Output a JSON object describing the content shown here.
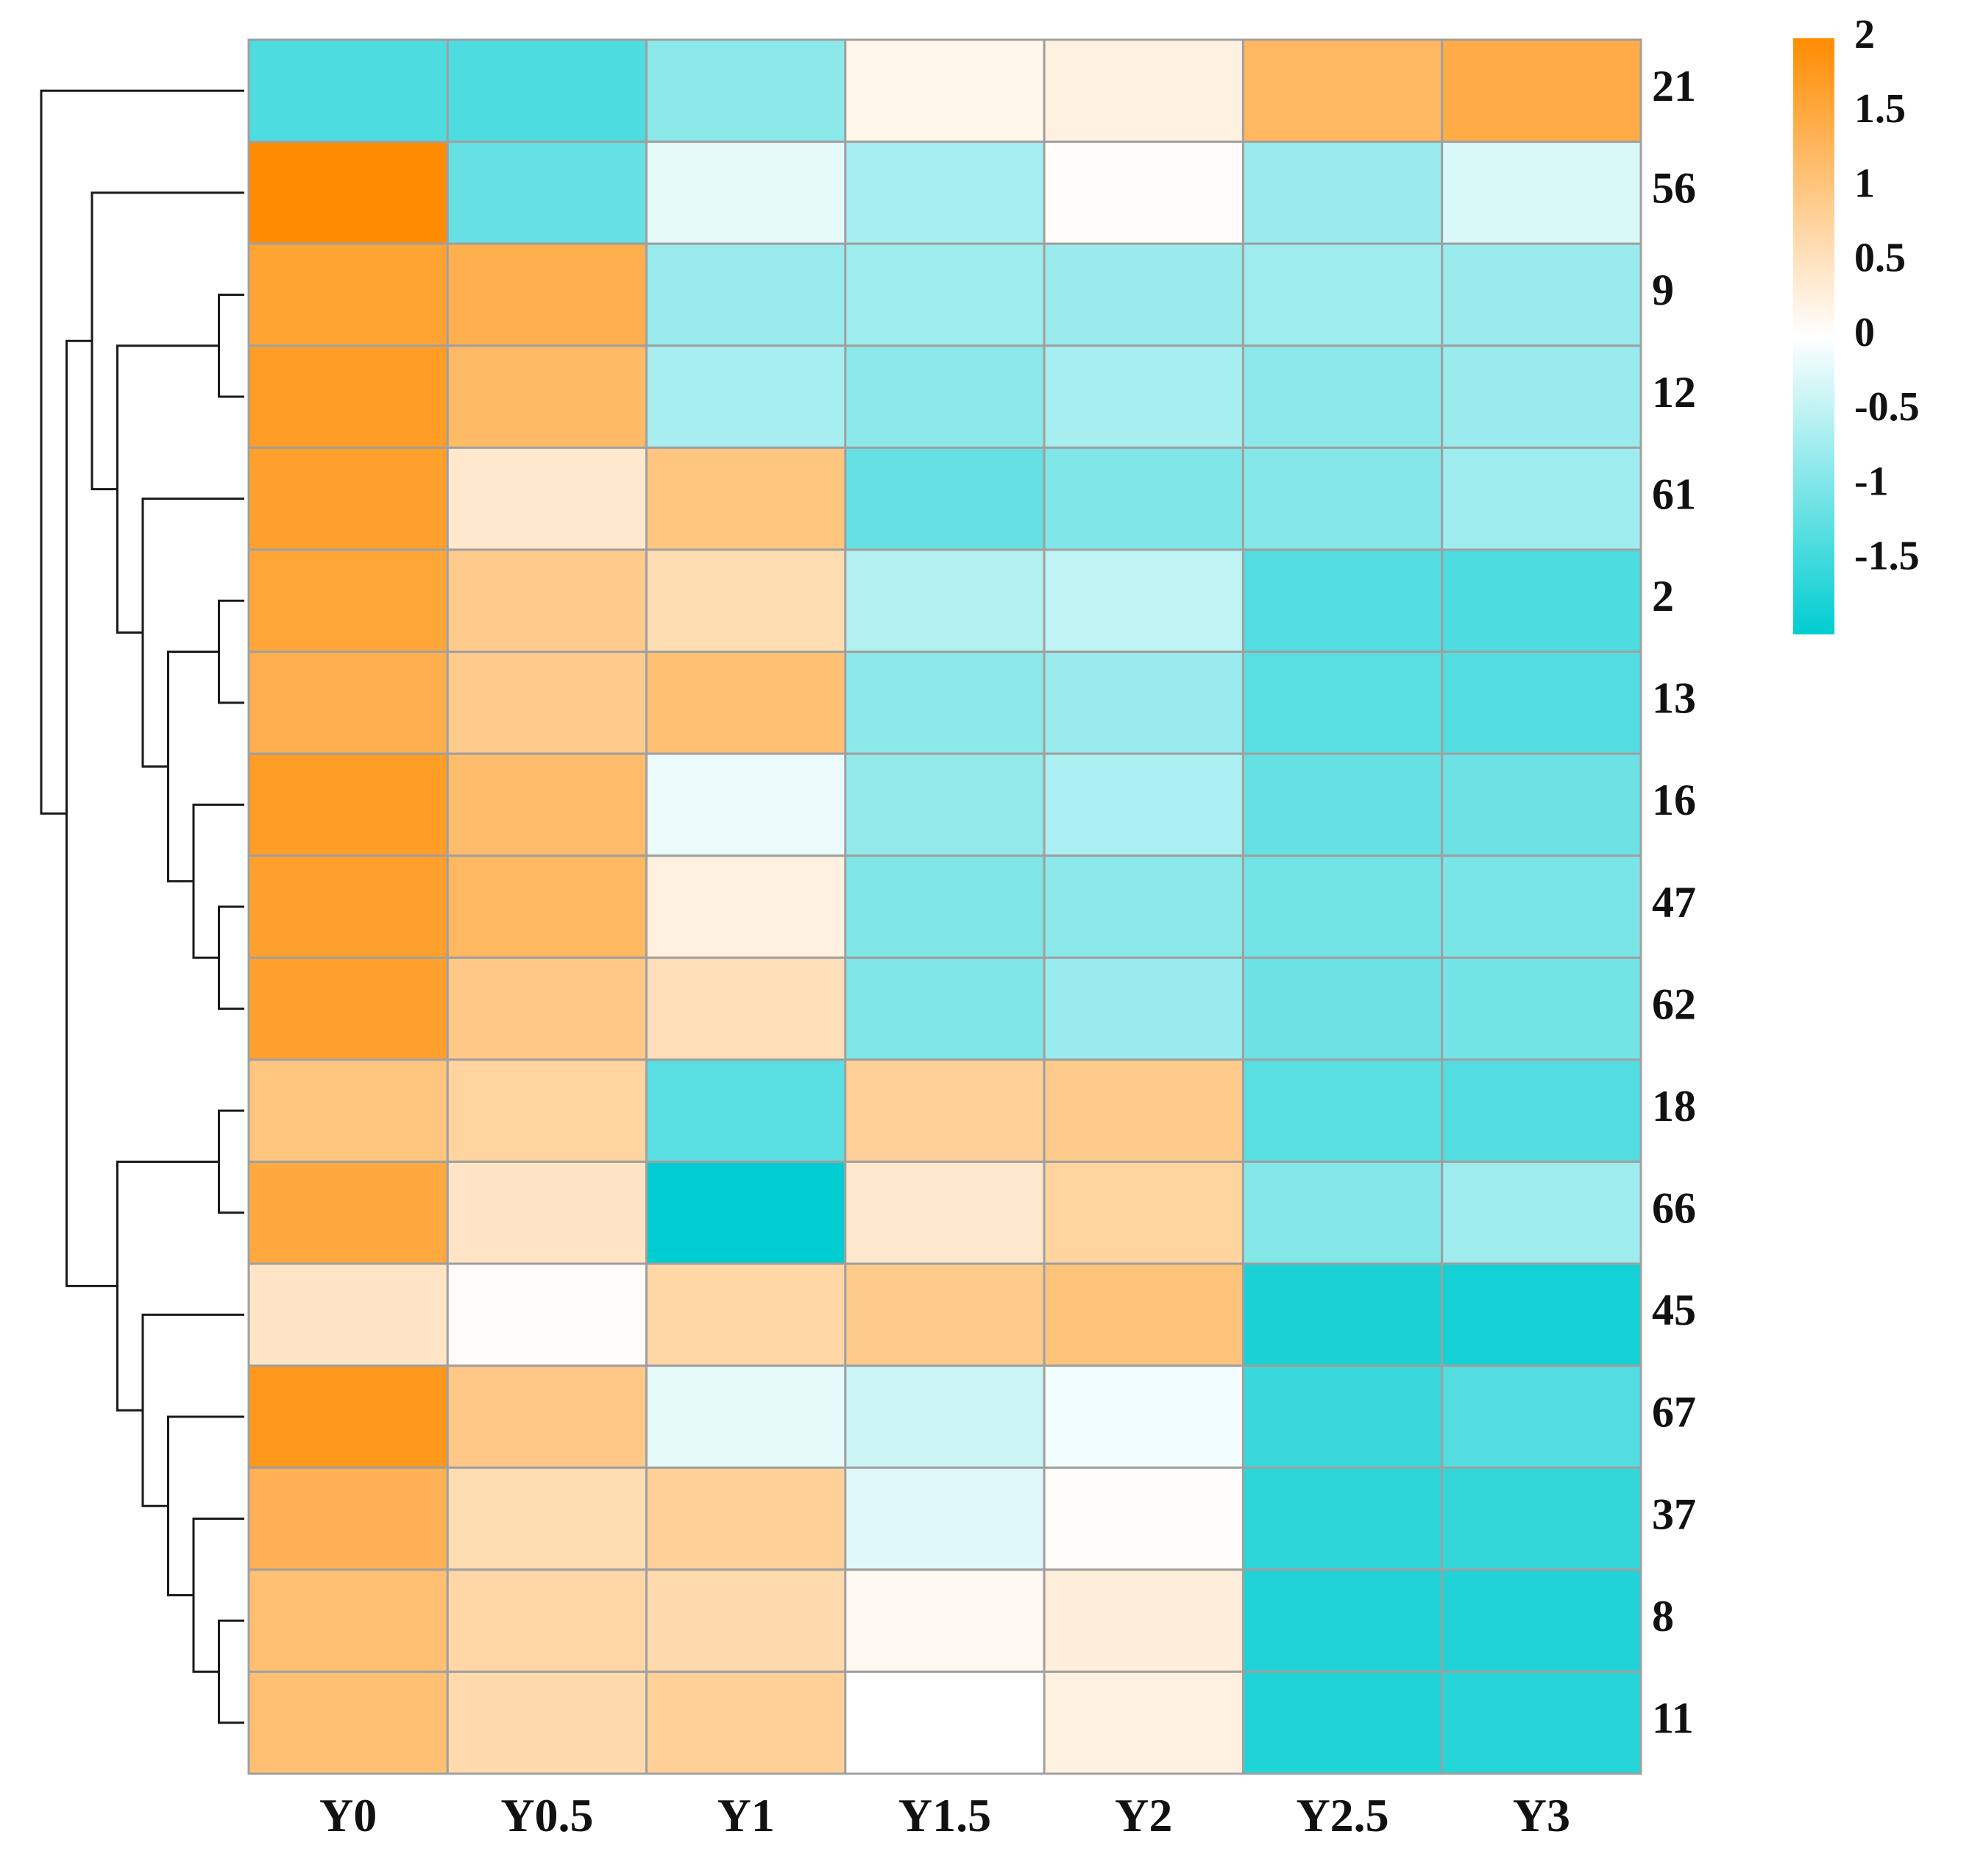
{
  "chart_data": {
    "type": "heatmap",
    "title": "",
    "columns": [
      "Y0",
      "Y0.5",
      "Y1",
      "Y1.5",
      "Y2",
      "Y2.5",
      "Y3"
    ],
    "rows": [
      "21",
      "56",
      "9",
      "12",
      "61",
      "2",
      "13",
      "16",
      "47",
      "62",
      "18",
      "66",
      "45",
      "67",
      "37",
      "8",
      "11"
    ],
    "values": [
      [
        -1.4,
        -1.4,
        -0.9,
        0.15,
        0.25,
        1.25,
        1.45
      ],
      [
        2.0,
        -1.2,
        -0.2,
        -0.7,
        0.05,
        -0.8,
        -0.3
      ],
      [
        1.6,
        1.4,
        -0.8,
        -0.75,
        -0.8,
        -0.75,
        -0.8
      ],
      [
        1.7,
        1.2,
        -0.7,
        -0.9,
        -0.7,
        -0.9,
        -0.8
      ],
      [
        1.65,
        0.4,
        1.0,
        -1.2,
        -1.0,
        -0.95,
        -0.75
      ],
      [
        1.55,
        0.9,
        0.6,
        -0.6,
        -0.5,
        -1.35,
        -1.4
      ],
      [
        1.4,
        0.9,
        1.1,
        -0.9,
        -0.8,
        -1.3,
        -1.35
      ],
      [
        1.7,
        1.15,
        -0.15,
        -0.85,
        -0.65,
        -1.2,
        -1.15
      ],
      [
        1.65,
        1.25,
        0.25,
        -1.0,
        -0.9,
        -1.1,
        -1.05
      ],
      [
        1.65,
        0.95,
        0.55,
        -1.0,
        -0.8,
        -1.15,
        -1.1
      ],
      [
        1.0,
        0.75,
        -1.3,
        0.8,
        0.9,
        -1.3,
        -1.35
      ],
      [
        1.5,
        0.45,
        -2.0,
        0.4,
        0.75,
        -0.95,
        -0.75
      ],
      [
        0.45,
        0.05,
        0.7,
        0.9,
        1.05,
        -1.8,
        -1.85
      ],
      [
        1.8,
        0.95,
        -0.2,
        -0.4,
        -0.1,
        -1.55,
        -1.35
      ],
      [
        1.35,
        0.6,
        0.8,
        -0.25,
        0.05,
        -1.65,
        -1.6
      ],
      [
        1.1,
        0.7,
        0.65,
        0.1,
        0.3,
        -1.75,
        -1.75
      ],
      [
        1.1,
        0.65,
        0.8,
        0.0,
        0.25,
        -1.75,
        -1.7
      ]
    ],
    "colorbar": {
      "ticks": [
        "2",
        "1.5",
        "1",
        "0.5",
        "0",
        "-0.5",
        "-1",
        "-1.5"
      ],
      "range": [
        -2,
        2
      ],
      "low_color": "#00cdd1",
      "mid_color": "#ffffff",
      "high_color": "#ff8c00"
    },
    "dendrogram": "rows",
    "grid_color": "#a0a0a0"
  }
}
